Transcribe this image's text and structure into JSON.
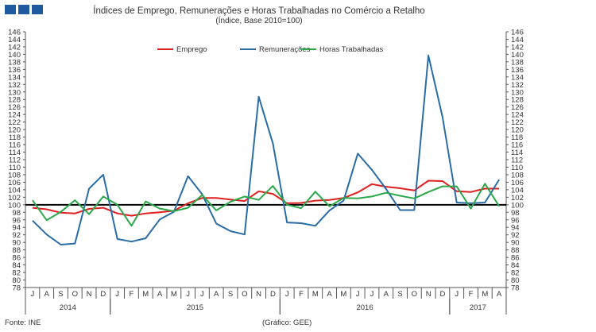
{
  "colors": {
    "logo": "#1f5aa0",
    "emprego": "#e02020",
    "remuneracoes": "#2a6ca6",
    "horas": "#2aa84a",
    "baseline": "#000000",
    "axis": "#555555"
  },
  "footer": {
    "source": "Fonte: INE",
    "credit": "(Gráfico: GEE)"
  },
  "chart_data": {
    "type": "line",
    "title": "Índices de Emprego, Remunerações e Horas Trabalhadas no Comércio a Retalho",
    "subtitle": "(Índice, Base 2010=100)",
    "ylim": [
      78,
      146
    ],
    "yticks": [
      78,
      80,
      82,
      84,
      86,
      88,
      90,
      92,
      94,
      96,
      98,
      100,
      102,
      104,
      106,
      108,
      110,
      112,
      114,
      116,
      118,
      120,
      122,
      124,
      126,
      128,
      130,
      132,
      134,
      136,
      138,
      140,
      142,
      144,
      146
    ],
    "reference_line": 100,
    "legend_position": "top-center",
    "month_labels": [
      "J",
      "A",
      "S",
      "O",
      "N",
      "D",
      "J",
      "F",
      "M",
      "A",
      "M",
      "J",
      "J",
      "A",
      "S",
      "O",
      "N",
      "D",
      "J",
      "F",
      "M",
      "A",
      "M",
      "J",
      "J",
      "A",
      "S",
      "O",
      "N",
      "D",
      "J",
      "F",
      "M",
      "A"
    ],
    "years": [
      {
        "label": "2014",
        "start": 0,
        "end": 5
      },
      {
        "label": "2015",
        "start": 6,
        "end": 17
      },
      {
        "label": "2016",
        "start": 18,
        "end": 29
      },
      {
        "label": "2017",
        "start": 30,
        "end": 33
      }
    ],
    "series": [
      {
        "name": "Emprego",
        "color": "#e02020",
        "values": [
          99.2,
          98.8,
          97.9,
          97.7,
          98.9,
          99.2,
          97.7,
          97.1,
          97.7,
          98.0,
          98.4,
          100.4,
          101.8,
          101.8,
          101.4,
          101.0,
          103.6,
          102.9,
          100.4,
          100.5,
          101.1,
          101.3,
          101.8,
          103.3,
          105.5,
          104.8,
          104.4,
          103.8,
          106.4,
          106.3,
          103.6,
          103.4,
          104.3,
          104.3
        ]
      },
      {
        "name": "Remunerações",
        "color": "#2a6ca6",
        "values": [
          95.8,
          92.1,
          89.4,
          89.7,
          104.3,
          108.0,
          90.9,
          90.2,
          91.1,
          96.1,
          98.1,
          107.6,
          102.8,
          95.0,
          93.0,
          92.1,
          128.7,
          116.3,
          95.3,
          95.1,
          94.4,
          98.5,
          101.1,
          113.6,
          109.3,
          104.2,
          98.6,
          98.6,
          139.7,
          123.3,
          100.6,
          100.4,
          100.6,
          106.7
        ]
      },
      {
        "name": "Horas Trabalhadas",
        "color": "#2aa84a",
        "values": [
          101.2,
          95.9,
          98.1,
          101.2,
          97.5,
          102.2,
          100.0,
          94.4,
          100.9,
          99.0,
          98.3,
          99.2,
          102.6,
          98.5,
          100.8,
          102.2,
          101.3,
          105.0,
          100.0,
          99.1,
          103.5,
          99.6,
          101.8,
          101.7,
          102.2,
          103.2,
          102.4,
          101.7,
          103.4,
          104.9,
          104.9,
          99.0,
          105.6,
          99.6
        ]
      }
    ]
  }
}
